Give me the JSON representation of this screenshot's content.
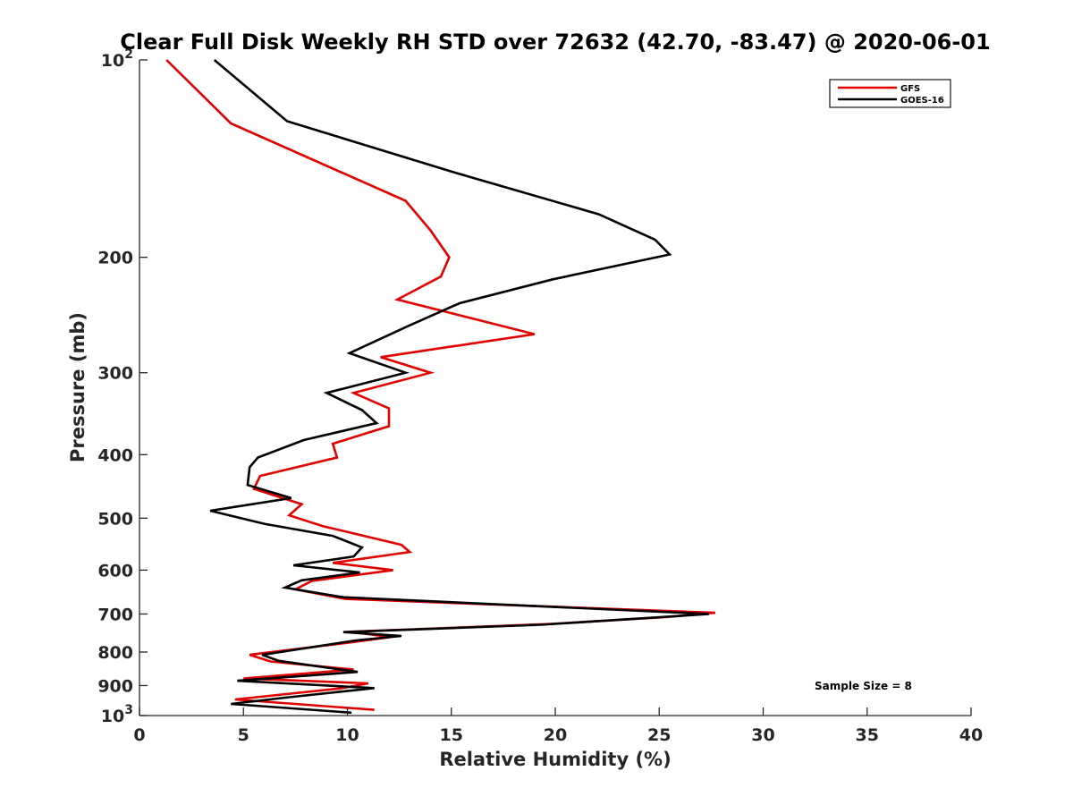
{
  "chart_data": {
    "type": "line",
    "title": "Clear Full Disk Weekly RH STD over 72632 (42.70, -83.47) @ 2020-06-01",
    "xlabel": "Relative Humidity (%)",
    "ylabel": "Pressure (mb)",
    "xlim": [
      0,
      40
    ],
    "ylim": [
      100,
      1000
    ],
    "y_scale": "log",
    "y_reversed": true,
    "grid": false,
    "legend_position": "top-right",
    "x_ticks": [
      "0",
      "5",
      "10",
      "15",
      "20",
      "25",
      "30",
      "35",
      "40"
    ],
    "y_ticks": [
      {
        "value": 100,
        "base": "10",
        "exp": "2"
      },
      {
        "value": 200,
        "label": "200"
      },
      {
        "value": 300,
        "label": "300"
      },
      {
        "value": 400,
        "label": "400"
      },
      {
        "value": 500,
        "label": "500"
      },
      {
        "value": 600,
        "label": "600"
      },
      {
        "value": 700,
        "label": "700"
      },
      {
        "value": 800,
        "label": "800"
      },
      {
        "value": 900,
        "label": "900"
      },
      {
        "value": 1000,
        "base": "10",
        "exp": "3"
      }
    ],
    "series": [
      {
        "name": "GFS",
        "color": "#e00000",
        "points": [
          [
            1.3,
            100
          ],
          [
            4.4,
            125
          ],
          [
            12.8,
            164
          ],
          [
            14.0,
            182
          ],
          [
            14.9,
            200
          ],
          [
            14.5,
            214
          ],
          [
            12.4,
            232
          ],
          [
            19.0,
            262
          ],
          [
            11.6,
            284
          ],
          [
            14.0,
            300
          ],
          [
            10.3,
            322
          ],
          [
            12.0,
            340
          ],
          [
            12.0,
            362
          ],
          [
            9.3,
            385
          ],
          [
            9.5,
            404
          ],
          [
            5.8,
            431
          ],
          [
            5.5,
            451
          ],
          [
            7.8,
            476
          ],
          [
            7.2,
            495
          ],
          [
            8.8,
            514
          ],
          [
            12.6,
            549
          ],
          [
            13.0,
            563
          ],
          [
            9.3,
            585
          ],
          [
            12.2,
            600
          ],
          [
            8.3,
            623
          ],
          [
            7.5,
            642
          ],
          [
            9.9,
            664
          ],
          [
            27.7,
            697
          ],
          [
            25.2,
            708
          ],
          [
            19.8,
            725
          ],
          [
            10.1,
            745
          ],
          [
            12.1,
            759
          ],
          [
            9.9,
            775
          ],
          [
            5.3,
            808
          ],
          [
            6.3,
            827
          ],
          [
            10.3,
            851
          ],
          [
            5.0,
            878
          ],
          [
            11.0,
            893
          ],
          [
            9.7,
            909
          ],
          [
            4.6,
            945
          ],
          [
            11.3,
            980
          ]
        ]
      },
      {
        "name": "GOES-16",
        "color": "#000000",
        "points": [
          [
            3.6,
            100
          ],
          [
            7.1,
            124
          ],
          [
            15.0,
            148
          ],
          [
            22.1,
            172
          ],
          [
            24.8,
            188
          ],
          [
            25.5,
            198
          ],
          [
            19.9,
            216
          ],
          [
            15.4,
            235
          ],
          [
            13.0,
            254
          ],
          [
            10.1,
            280
          ],
          [
            12.8,
            300
          ],
          [
            9.0,
            322
          ],
          [
            10.7,
            342
          ],
          [
            11.4,
            358
          ],
          [
            7.9,
            380
          ],
          [
            5.7,
            404
          ],
          [
            5.3,
            418
          ],
          [
            5.2,
            445
          ],
          [
            7.3,
            466
          ],
          [
            3.4,
            487
          ],
          [
            6.0,
            510
          ],
          [
            9.3,
            532
          ],
          [
            10.7,
            554
          ],
          [
            10.3,
            572
          ],
          [
            7.4,
            590
          ],
          [
            10.6,
            605
          ],
          [
            7.8,
            622
          ],
          [
            7.0,
            638
          ],
          [
            9.8,
            660
          ],
          [
            27.4,
            700
          ],
          [
            19.3,
            727
          ],
          [
            9.8,
            746
          ],
          [
            12.6,
            756
          ],
          [
            10.4,
            768
          ],
          [
            5.9,
            808
          ],
          [
            6.7,
            825
          ],
          [
            10.5,
            858
          ],
          [
            4.7,
            885
          ],
          [
            11.3,
            908
          ],
          [
            7.0,
            939
          ],
          [
            4.4,
            960
          ],
          [
            10.2,
            990
          ]
        ]
      }
    ],
    "legend": [
      "GFS",
      "GOES-16"
    ],
    "annotation": "Sample Size = 8"
  }
}
